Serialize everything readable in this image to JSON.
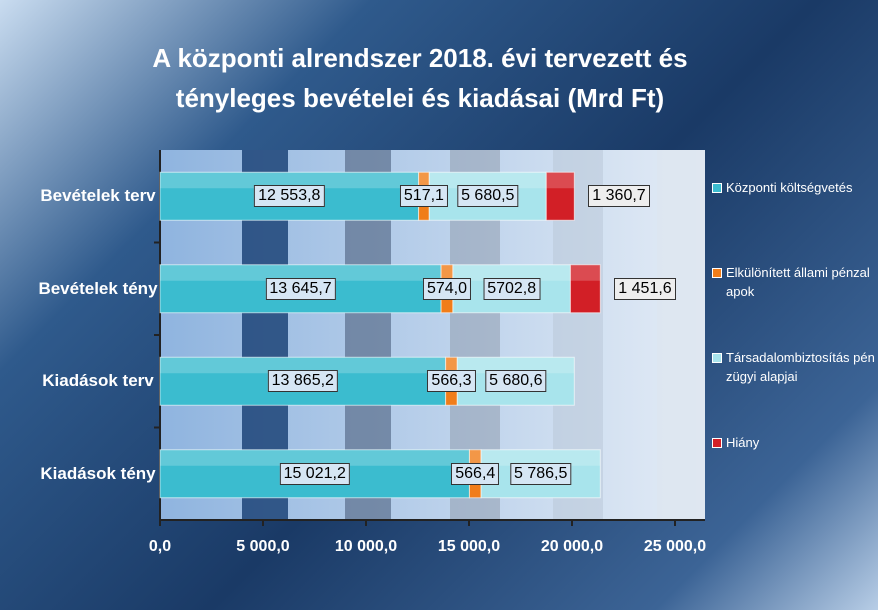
{
  "chart_data": {
    "type": "stacked-barh",
    "title": "A központi alrendszer 2018. évi tervezett és tényleges bevételei és kiadásai (Mrd Ft)",
    "categories": [
      "Bevételek terv",
      "Bevételek tény",
      "Kiadások terv",
      "Kiadások tény"
    ],
    "series": [
      {
        "name": "Központi költségvetés",
        "color": "#3bbccf",
        "values": [
          12553.8,
          13645.7,
          13865.2,
          15021.2
        ],
        "value_labels": [
          "12 553,8",
          "13 645,7",
          "13 865,2",
          "15 021,2"
        ]
      },
      {
        "name": "Elkülönített állami pénzalapok",
        "color": "#f07d1a",
        "values": [
          517.1,
          574.0,
          566.3,
          566.4
        ],
        "value_labels": [
          "517,1",
          "574,0",
          "566,3",
          "566,4"
        ]
      },
      {
        "name": "Társadalombiztosítás pénzügyi alapjai",
        "color": "#a8e4ec",
        "values": [
          5680.5,
          5702.8,
          5680.6,
          5786.5
        ],
        "value_labels": [
          "5 680,5",
          "5702,8",
          "5 680,6",
          "5 786,5"
        ]
      },
      {
        "name": "Hiány",
        "color": "#d21f26",
        "values": [
          1360.7,
          1451.6,
          null,
          null
        ],
        "value_labels": [
          "1 360,7",
          "1 451,6",
          null,
          null
        ]
      }
    ],
    "xlim": [
      0,
      25000
    ],
    "xticks": [
      {
        "value": 0,
        "label": "0,0"
      },
      {
        "value": 5000,
        "label": "5 000,0"
      },
      {
        "value": 10000,
        "label": "10 000,0"
      },
      {
        "value": 15000,
        "label": "15 000,0"
      },
      {
        "value": 20000,
        "label": "20 000,0"
      },
      {
        "value": 25000,
        "label": "25 000,0"
      }
    ],
    "legend": "right"
  }
}
